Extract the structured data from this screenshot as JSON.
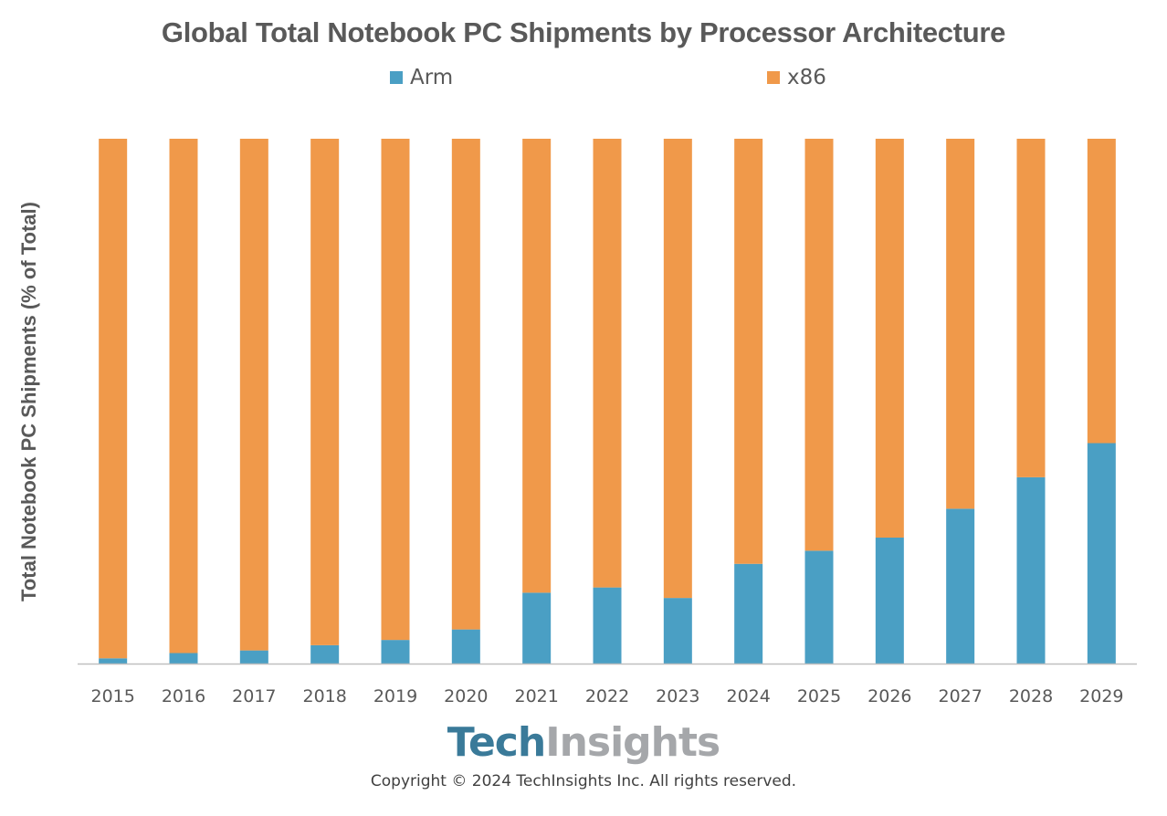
{
  "chart_data": {
    "type": "bar",
    "stacked": true,
    "title": "Global Total Notebook PC Shipments by Processor Architecture",
    "xlabel": "",
    "ylabel": "Total Notebook PC Shipments (% of Total)",
    "ylim": [
      0,
      100
    ],
    "grid": false,
    "legend_position": "top",
    "categories": [
      "2015",
      "2016",
      "2017",
      "2018",
      "2019",
      "2020",
      "2021",
      "2022",
      "2023",
      "2024",
      "2025",
      "2026",
      "2027",
      "2028",
      "2029"
    ],
    "series": [
      {
        "name": "Arm",
        "color": "#4a9fc4",
        "values": [
          1,
          2,
          2.5,
          3.5,
          4.5,
          6.5,
          13.5,
          14.5,
          12.5,
          19,
          21.5,
          24,
          29.5,
          35.5,
          42
        ]
      },
      {
        "name": "x86",
        "color": "#f0994a",
        "values": [
          99,
          98,
          97.5,
          96.5,
          95.5,
          93.5,
          86.5,
          85.5,
          87.5,
          81,
          78.5,
          76,
          70.5,
          64.5,
          58
        ]
      }
    ]
  },
  "branding": {
    "logo_part1": "Tech",
    "logo_part2": "Insights",
    "copyright": "Copyright © 2024 TechInsights Inc.  All rights reserved."
  }
}
